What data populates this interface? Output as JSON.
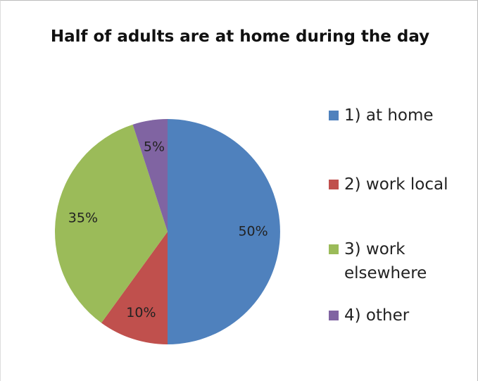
{
  "chart_data": {
    "type": "pie",
    "title": "Half of adults are at home during the day",
    "categories": [
      "1) at home",
      "2) work local",
      "3) work elsewhere",
      "4) other"
    ],
    "values": [
      50,
      10,
      35,
      5
    ],
    "value_labels": [
      "50%",
      "10%",
      "35%",
      "5%"
    ],
    "colors": [
      "#4f81bd",
      "#c0504d",
      "#9bbb59",
      "#8064a2"
    ],
    "legend": "right"
  }
}
